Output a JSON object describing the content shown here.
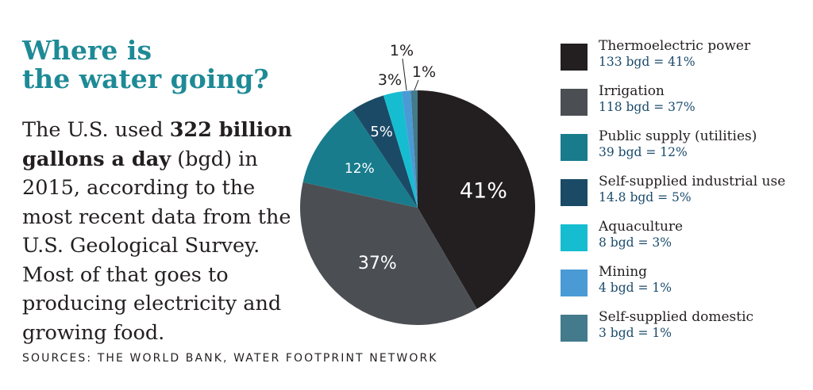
{
  "title_lines": [
    "Where is",
    "the water going?"
  ],
  "body": {
    "part1": "The U.S. used ",
    "bold": "322 billion gallons a day",
    "part2": " (bgd) in 2015, according to the most recent data from the U.S. Geological Survey. Most of that goes to producing electricity and growing food."
  },
  "sources": "SOURCES: THE WORLD BANK, WATER FOOTPRINT NETWORK",
  "chart_data": {
    "type": "pie",
    "title": "Where is the water going?",
    "unit": "bgd",
    "total": 322,
    "start": "12 o'clock",
    "direction": "clockwise",
    "slices": [
      {
        "name": "Thermoelectric power",
        "value": 133,
        "percent_label": "41%",
        "legend_value": "133 bgd = 41%",
        "color": "#231f20"
      },
      {
        "name": "Irrigation",
        "value": 118,
        "percent_label": "37%",
        "legend_value": "118 bgd = 37%",
        "color": "#4b4f54"
      },
      {
        "name": "Public supply (utilities)",
        "value": 39,
        "percent_label": "12%",
        "legend_value": "39 bgd = 12%",
        "color": "#187c8c"
      },
      {
        "name": "Self-supplied industrial use",
        "value": 14.8,
        "percent_label": "5%",
        "legend_value": "14.8 bgd = 5%",
        "color": "#1a4a66"
      },
      {
        "name": "Aquaculture",
        "value": 8,
        "percent_label": "3%",
        "legend_value": "8 bgd = 3%",
        "color": "#16bdd0"
      },
      {
        "name": "Mining",
        "value": 4,
        "percent_label": "1%",
        "legend_value": "4 bgd = 1%",
        "color": "#4a9ad6"
      },
      {
        "name": "Self-supplied domestic",
        "value": 3,
        "percent_label": "1%",
        "legend_value": "3 bgd = 1%",
        "color": "#437a8c"
      }
    ]
  }
}
